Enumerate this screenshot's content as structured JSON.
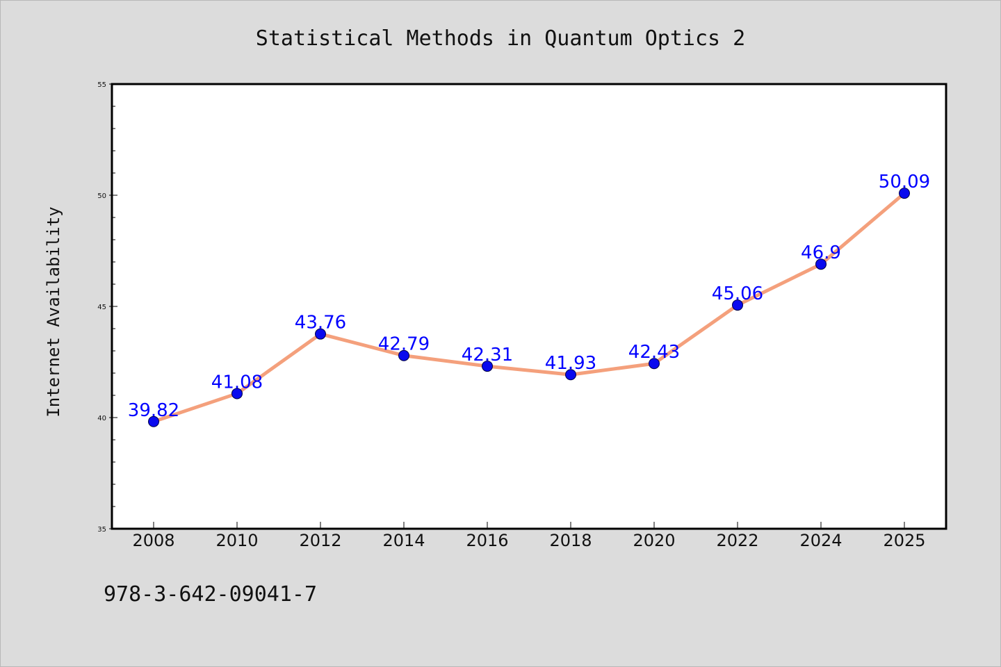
{
  "chart_data": {
    "type": "line",
    "title": "Statistical Methods in Quantum Optics 2",
    "xlabel": "",
    "ylabel": "Internet Availability",
    "categories": [
      "2008",
      "2010",
      "2012",
      "2014",
      "2016",
      "2018",
      "2020",
      "2022",
      "2024",
      "2025"
    ],
    "series": [
      {
        "values": [
          39.82,
          41.08,
          43.76,
          42.79,
          42.31,
          41.93,
          42.43,
          45.06,
          46.9,
          50.09
        ],
        "data_labels": [
          "39.82",
          "41.08",
          "43.76",
          "42.79",
          "42.31",
          "41.93",
          "42.43",
          "45.06",
          "46.9",
          "50.09"
        ],
        "line_color": "#f4a07c",
        "marker_color": "#0a0aee",
        "marker": "circle"
      }
    ],
    "ylim": [
      35,
      55
    ],
    "yticks": [
      "35",
      "40",
      "45",
      "50",
      "55"
    ],
    "grid": false,
    "legend": "none",
    "label_color": "#0000ff"
  },
  "footer": {
    "text": "978-3-642-09041-7"
  },
  "colors": {
    "background": "#dcdcdc",
    "plot_area": "#ffffff",
    "axes": "#000000"
  }
}
